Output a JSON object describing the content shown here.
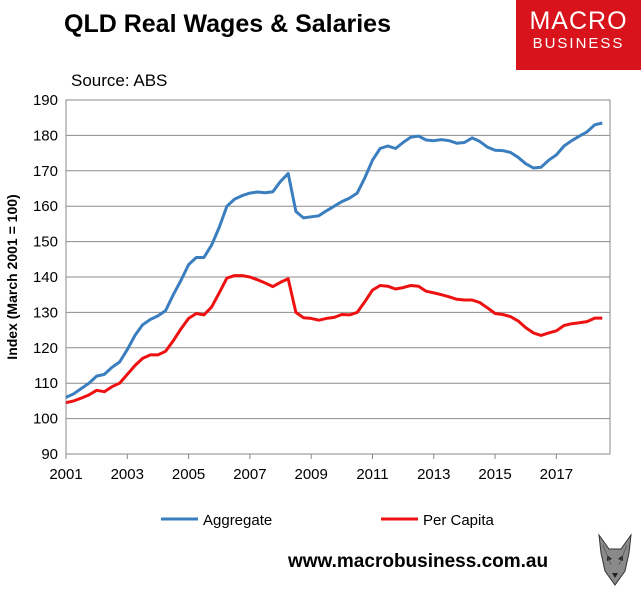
{
  "header": {
    "title": "QLD Real Wages & Salaries",
    "source": "Source: ABS",
    "logo_line1": "MACRO",
    "logo_line2": "BUSINESS",
    "logo_color": "#d8131b"
  },
  "footer": {
    "url": "www.macrobusiness.com.au"
  },
  "chart_data": {
    "type": "line",
    "ylabel": "Index (March 2001 = 100)",
    "xlabel": "",
    "xlim": [
      2001,
      2018.75
    ],
    "ylim": [
      90,
      190
    ],
    "yticks": [
      90,
      100,
      110,
      120,
      130,
      140,
      150,
      160,
      170,
      180,
      190
    ],
    "xticks": [
      2001,
      2003,
      2005,
      2007,
      2009,
      2011,
      2013,
      2015,
      2017
    ],
    "grid": "horizontal",
    "legend_position": "bottom",
    "x_start": 2001.0,
    "x_step": 0.25,
    "series": [
      {
        "name": "Aggregate",
        "color": "#3a7ebf",
        "values": [
          106,
          107,
          108.5,
          110,
          112,
          112.5,
          114.5,
          116,
          119.5,
          123.5,
          126.5,
          128,
          129,
          130.5,
          135,
          139,
          143.5,
          145.5,
          145.5,
          149,
          154,
          160,
          162,
          163,
          163.7,
          164,
          163.8,
          164.1,
          167,
          169.2,
          158.5,
          156.7,
          157,
          157.3,
          158.7,
          160,
          161.3,
          162.3,
          163.7,
          168,
          173,
          176.3,
          177,
          176.3,
          178,
          179.5,
          179.8,
          178.7,
          178.5,
          178.8,
          178.5,
          177.8,
          178,
          179.3,
          178.3,
          176.7,
          175.8,
          175.7,
          175.2,
          173.8,
          172,
          170.8,
          171,
          173,
          174.5,
          177,
          178.5,
          179.8,
          181,
          183,
          183.5
        ],
        "markers": false
      },
      {
        "name": "Per Capita",
        "color": "#ee1111",
        "values": [
          104.5,
          105,
          105.8,
          106.7,
          108,
          107.6,
          109,
          110,
          112.5,
          115,
          117,
          118,
          118,
          119,
          122,
          125.3,
          128.3,
          129.7,
          129.3,
          131.5,
          135.5,
          139.7,
          140.4,
          140.4,
          140,
          139.2,
          138.3,
          137.3,
          138.5,
          139.5,
          130,
          128.5,
          128.3,
          127.8,
          128.3,
          128.6,
          129.4,
          129.3,
          130,
          133,
          136.3,
          137.6,
          137.4,
          136.6,
          137,
          137.6,
          137.4,
          136,
          135.5,
          135,
          134.4,
          133.7,
          133.5,
          133.5,
          132.8,
          131.3,
          129.7,
          129.4,
          128.8,
          127.6,
          125.7,
          124.2,
          123.5,
          124.2,
          124.8,
          126.3,
          126.8,
          127.1,
          127.4,
          128.4,
          128.4
        ],
        "markers": false
      }
    ]
  }
}
